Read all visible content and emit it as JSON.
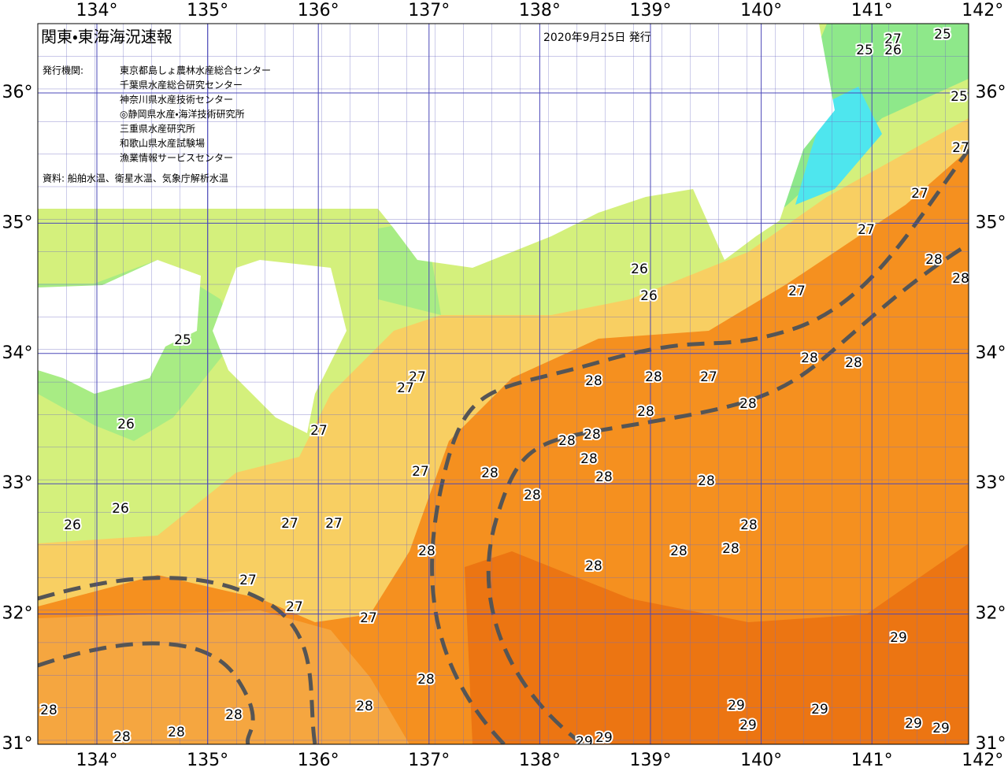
{
  "header": {
    "title": "関東・東海海況速報",
    "issued": "2020年9月25日 発行",
    "publisher_label": "発行機関:",
    "publishers": [
      "東京都島しょ農林水産総合センター",
      "千葉県水産総合研究センター",
      "神奈川県水産技術センター",
      "◎静岡県水産・海洋技術研究所",
      "三重県水産研究所",
      "和歌山県水産試験場",
      "漁業情報サービスセンター"
    ],
    "source": "資料: 船舶水温、衛星水温、気象庁解析水温"
  },
  "map": {
    "lon_ticks": [
      {
        "value": 134,
        "label": "134°"
      },
      {
        "value": 135,
        "label": "135°"
      },
      {
        "value": 136,
        "label": "136°"
      },
      {
        "value": 137,
        "label": "137°"
      },
      {
        "value": 138,
        "label": "138°"
      },
      {
        "value": 139,
        "label": "139°"
      },
      {
        "value": 140,
        "label": "140°"
      },
      {
        "value": 141,
        "label": "141°"
      },
      {
        "value": 142,
        "label": "142°"
      }
    ],
    "lat_ticks": [
      {
        "value": 36,
        "label": "36°"
      },
      {
        "value": 35,
        "label": "35°"
      },
      {
        "value": 34,
        "label": "34°"
      },
      {
        "value": 33,
        "label": "33°"
      },
      {
        "value": 32,
        "label": "32°"
      },
      {
        "value": 31,
        "label": "31°"
      }
    ],
    "contour_labels": [
      25,
      27,
      25,
      26,
      25,
      27,
      27,
      27,
      28,
      28,
      26,
      26,
      27,
      25,
      28,
      28,
      27,
      27,
      28,
      28,
      27,
      28,
      28,
      27,
      26,
      28,
      28,
      28,
      27,
      28,
      28,
      28,
      28,
      26,
      26,
      27,
      27,
      28,
      28,
      28,
      28,
      28,
      27,
      27,
      27,
      29,
      28,
      28,
      28,
      28,
      29,
      29,
      29,
      28,
      28,
      29,
      29,
      29,
      29
    ]
  }
}
